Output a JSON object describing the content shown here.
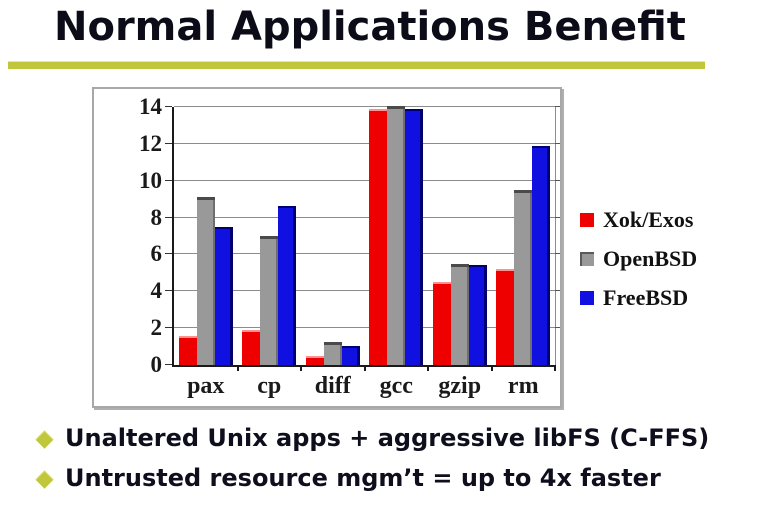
{
  "slide": {
    "title": "Normal Applications Benefit",
    "accent_color": "#c1c73b",
    "bullets": [
      {
        "text": "Unaltered Unix apps + aggressive libFS (C-FFS)"
      },
      {
        "text": "Untrusted resource mgm’t = up to 4x faster"
      }
    ]
  },
  "chart_data": {
    "type": "bar",
    "title": "",
    "xlabel": "",
    "ylabel": "",
    "categories": [
      "pax",
      "cp",
      "diff",
      "gcc",
      "gzip",
      "rm"
    ],
    "series": [
      {
        "name": "Xok/Exos",
        "color": "#ee0000",
        "values": [
          1.6,
          1.9,
          0.5,
          13.9,
          4.5,
          5.2
        ]
      },
      {
        "name": "OpenBSD",
        "color": "#999999",
        "values": [
          9.1,
          7.0,
          1.25,
          14.05,
          5.5,
          9.5
        ]
      },
      {
        "name": "FreeBSD",
        "color": "#1010e0",
        "values": [
          7.5,
          8.65,
          1.05,
          13.9,
          5.45,
          11.9
        ]
      }
    ],
    "ylim": [
      0,
      14
    ],
    "ytick_step": 2,
    "grid": true,
    "legend_position": "right",
    "gridline_color": "#8c8c8c",
    "axis_text_color": "#1a1a1a"
  }
}
